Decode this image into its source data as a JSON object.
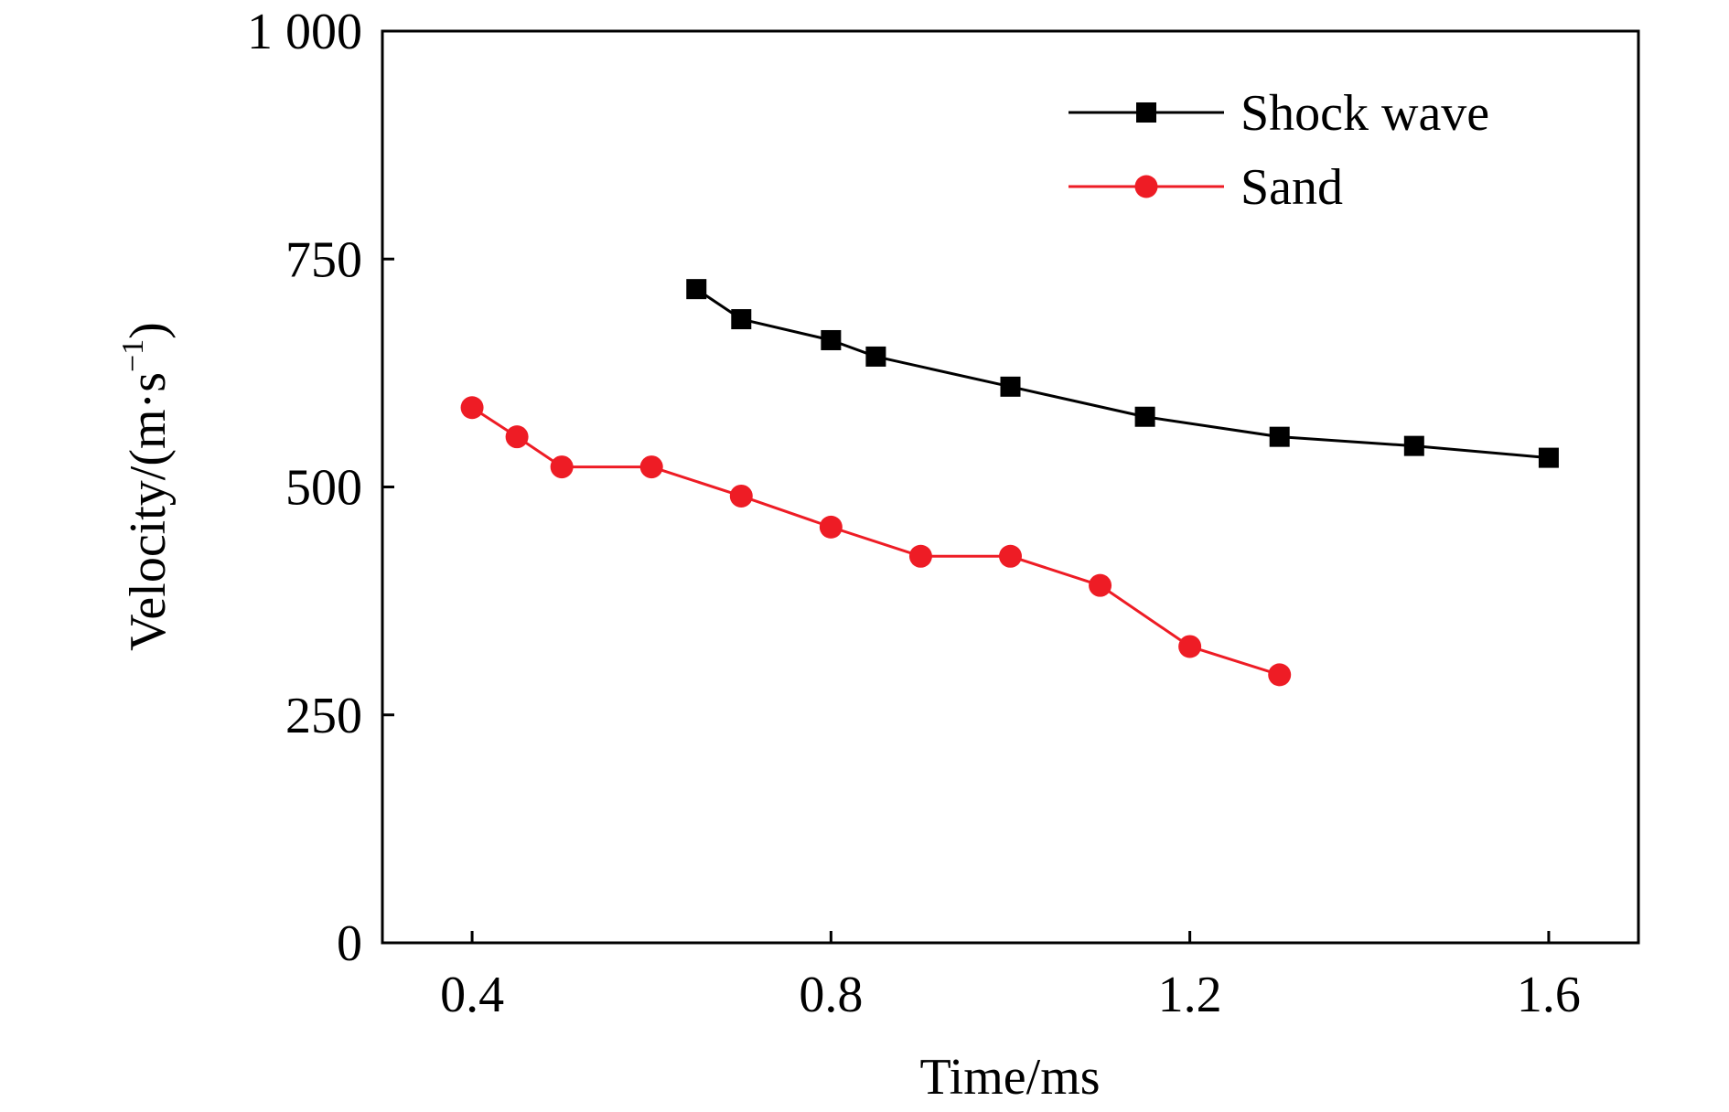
{
  "chart_data": {
    "type": "line",
    "xlabel": "Time/ms",
    "ylabel": "Velocity/(m·s",
    "ylabel_sup": "−1",
    "ylabel_close": ")",
    "xlim": [
      0.3,
      1.7
    ],
    "ylim": [
      0,
      1000
    ],
    "xticks": [
      0.4,
      0.8,
      1.2,
      1.6
    ],
    "xtick_labels": [
      "0.4",
      "0.8",
      "1.2",
      "1.6"
    ],
    "yticks": [
      0,
      250,
      500,
      750,
      1000
    ],
    "ytick_labels": [
      "0",
      "250",
      "500",
      "750",
      "1 000"
    ],
    "grid": false,
    "legend_position": "top-right",
    "series": [
      {
        "name": "Shock wave",
        "marker": "square",
        "color": "#000000",
        "x": [
          0.65,
          0.7,
          0.8,
          0.85,
          1.0,
          1.15,
          1.3,
          1.45,
          1.6
        ],
        "y": [
          717,
          684,
          661,
          643,
          610,
          577,
          555,
          545,
          532
        ]
      },
      {
        "name": "Sand",
        "marker": "circle",
        "color": "#ee1c25",
        "x": [
          0.4,
          0.45,
          0.5,
          0.6,
          0.7,
          0.8,
          0.9,
          1.0,
          1.1,
          1.2,
          1.3
        ],
        "y": [
          587,
          555,
          522,
          522,
          490,
          456,
          424,
          424,
          392,
          325,
          294
        ]
      }
    ]
  }
}
